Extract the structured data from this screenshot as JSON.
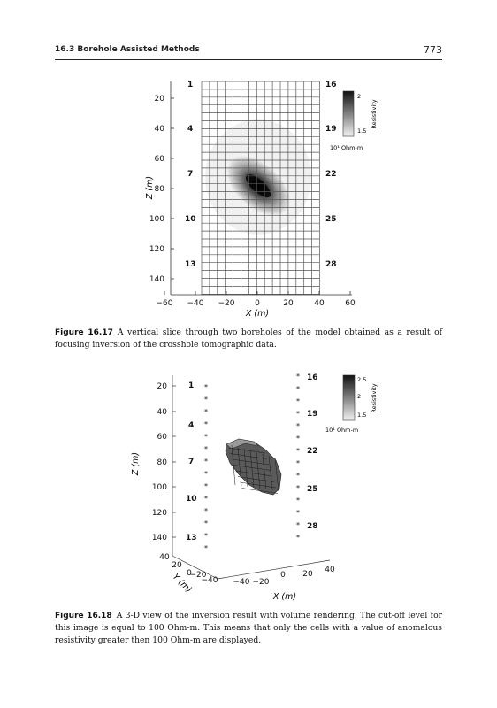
{
  "header": {
    "running_head": "16.3 Borehole Assisted Methods",
    "page_number": "773"
  },
  "figure_1617": {
    "label": "Figure 16.17",
    "caption": "A vertical slice through two boreholes of the model obtained as a result of focusing inversion of the crosshole tomographic data.",
    "xlabel": "X (m)",
    "ylabel": "Z (m)",
    "x_ticks": [
      "−60",
      "−40",
      "−20",
      "0",
      "20",
      "40",
      "60"
    ],
    "z_ticks": [
      "20",
      "40",
      "60",
      "80",
      "100",
      "120",
      "140"
    ],
    "left_borehole_labels": [
      "1",
      "4",
      "7",
      "10",
      "13"
    ],
    "right_borehole_labels": [
      "16",
      "19",
      "22",
      "25",
      "28"
    ],
    "colorbar": {
      "title": "Resistivity",
      "unit": "10¹ Ohm-m",
      "ticks": [
        "2",
        "1.5"
      ],
      "colors": [
        "#111111",
        "#f2f2f2"
      ]
    }
  },
  "figure_1618": {
    "label": "Figure 16.18",
    "caption": "A 3-D view of the inversion result with volume rendering. The cut-off level for this image is equal to 100 Ohm-m. This means that only the cells with a value of anomalous resistivity greater then 100 Ohm-m are displayed.",
    "xlabel": "X (m)",
    "ylabel": "Y (m)",
    "zlabel": "Z (m)",
    "z_ticks": [
      "20",
      "40",
      "60",
      "80",
      "100",
      "120",
      "140"
    ],
    "x_ticks": [
      "−40",
      "−20",
      "0",
      "20",
      "40"
    ],
    "y_ticks": [
      "40",
      "20",
      "0",
      "−20",
      "−40"
    ],
    "left_borehole_labels": [
      "1",
      "4",
      "7",
      "10",
      "13"
    ],
    "right_borehole_labels": [
      "16",
      "19",
      "22",
      "25",
      "28"
    ],
    "colorbar": {
      "title": "Resistivity",
      "unit": "10¹ Ohm-m",
      "ticks": [
        "2.5",
        "2",
        "1.5"
      ],
      "colors": [
        "#111111",
        "#f2f2f2"
      ]
    }
  }
}
